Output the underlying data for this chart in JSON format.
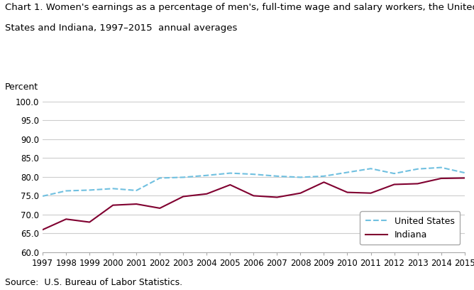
{
  "title_line1": "Chart 1. Women's earnings as a percentage of men's, full-time wage and salary workers, the United",
  "title_line2": "States and Indiana, 1997–2015  annual averages",
  "ylabel": "Percent",
  "source": "Source:  U.S. Bureau of Labor Statistics.",
  "years": [
    1997,
    1998,
    1999,
    2000,
    2001,
    2002,
    2003,
    2004,
    2005,
    2006,
    2007,
    2008,
    2009,
    2010,
    2011,
    2012,
    2013,
    2014,
    2015
  ],
  "us_values": [
    74.9,
    76.3,
    76.5,
    76.9,
    76.4,
    79.7,
    79.9,
    80.4,
    81.0,
    80.7,
    80.2,
    79.9,
    80.2,
    81.2,
    82.2,
    80.9,
    82.1,
    82.5,
    81.1
  ],
  "indiana_values": [
    66.0,
    68.8,
    68.0,
    72.5,
    72.8,
    71.7,
    74.8,
    75.5,
    77.9,
    75.0,
    74.6,
    75.7,
    78.6,
    75.9,
    75.7,
    78.0,
    78.2,
    79.6,
    79.7
  ],
  "us_color": "#70c0e0",
  "indiana_color": "#800030",
  "ylim": [
    60.0,
    100.0
  ],
  "yticks": [
    60.0,
    65.0,
    70.0,
    75.0,
    80.0,
    85.0,
    90.0,
    95.0,
    100.0
  ],
  "background_color": "#ffffff",
  "grid_color": "#cccccc",
  "legend_us": "United States",
  "legend_indiana": "Indiana",
  "title_fontsize": 9.5,
  "ylabel_fontsize": 9,
  "tick_fontsize": 8.5,
  "source_fontsize": 9,
  "legend_fontsize": 9
}
